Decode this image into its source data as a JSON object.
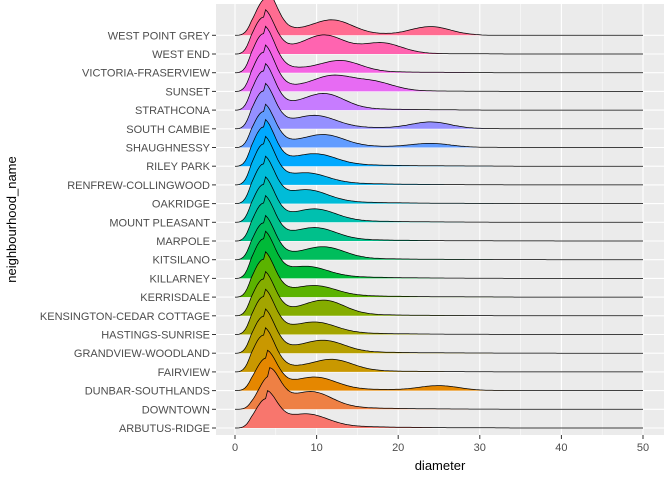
{
  "chart_data": {
    "type": "area",
    "subtype": "ridgeline",
    "title": "",
    "xlabel": "diameter",
    "ylabel": "neighbourhood_name",
    "xlim": [
      0,
      50
    ],
    "x_ticks": [
      0,
      10,
      20,
      30,
      40,
      50
    ],
    "grid": true,
    "legend": "none",
    "panel_background": "#ebebeb",
    "series": [
      {
        "name": "ARBUTUS-RIDGE",
        "color": "#F8766D",
        "peaks": [
          [
            3.8,
            0.62
          ],
          [
            9.0,
            0.22
          ]
        ],
        "long_tail_to": 32
      },
      {
        "name": "DOWNTOWN",
        "color": "#EE8044",
        "peaks": [
          [
            4.2,
            0.7
          ],
          [
            9.5,
            0.3
          ]
        ],
        "long_tail_to": 40
      },
      {
        "name": "DUNBAR-SOUTHLANDS",
        "color": "#E58700",
        "peaks": [
          [
            3.8,
            0.7
          ],
          [
            10.0,
            0.22
          ],
          [
            25.0,
            0.1
          ]
        ],
        "long_tail_to": 34
      },
      {
        "name": "FAIRVIEW",
        "color": "#C99800",
        "peaks": [
          [
            3.5,
            0.8
          ],
          [
            12.0,
            0.22
          ]
        ],
        "long_tail_to": 29
      },
      {
        "name": "GRANDVIEW-WOODLAND",
        "color": "#B69F00",
        "peaks": [
          [
            3.5,
            0.8
          ],
          [
            11.0,
            0.22
          ]
        ],
        "long_tail_to": 49
      },
      {
        "name": "HASTINGS-SUNRISE",
        "color": "#A3A500",
        "peaks": [
          [
            3.5,
            0.82
          ],
          [
            10.0,
            0.2
          ]
        ],
        "long_tail_to": 31
      },
      {
        "name": "KENSINGTON-CEDAR COTTAGE",
        "color": "#85AD00",
        "peaks": [
          [
            3.5,
            0.8
          ],
          [
            11.0,
            0.28
          ]
        ],
        "long_tail_to": 33
      },
      {
        "name": "KERRISDALE",
        "color": "#5BB300",
        "peaks": [
          [
            3.5,
            0.82
          ],
          [
            10.0,
            0.18
          ]
        ],
        "long_tail_to": 33
      },
      {
        "name": "KILLARNEY",
        "color": "#00BA38",
        "peaks": [
          [
            3.5,
            0.85
          ],
          [
            9.0,
            0.18
          ]
        ],
        "long_tail_to": 31
      },
      {
        "name": "KITSILANO",
        "color": "#00BD5C",
        "peaks": [
          [
            3.5,
            0.8
          ],
          [
            11.0,
            0.22
          ]
        ],
        "long_tail_to": 38
      },
      {
        "name": "MARPOLE",
        "color": "#00C08B",
        "peaks": [
          [
            3.5,
            0.82
          ],
          [
            10.0,
            0.22
          ]
        ],
        "long_tail_to": 39
      },
      {
        "name": "MOUNT PLEASANT",
        "color": "#00C0AF",
        "peaks": [
          [
            3.5,
            0.82
          ],
          [
            10.0,
            0.22
          ]
        ],
        "long_tail_to": 31
      },
      {
        "name": "OAKRIDGE",
        "color": "#00BCD8",
        "peaks": [
          [
            3.5,
            0.85
          ],
          [
            9.0,
            0.22
          ]
        ],
        "long_tail_to": 33
      },
      {
        "name": "RENFREW-COLLINGWOOD",
        "color": "#00B4F0",
        "peaks": [
          [
            3.5,
            0.88
          ],
          [
            9.0,
            0.18
          ]
        ],
        "long_tail_to": 31
      },
      {
        "name": "RILEY PARK",
        "color": "#00A9FF",
        "peaks": [
          [
            3.5,
            0.85
          ],
          [
            10.0,
            0.2
          ]
        ],
        "long_tail_to": 33
      },
      {
        "name": "SHAUGHNESSY",
        "color": "#619CFF",
        "peaks": [
          [
            3.5,
            0.78
          ],
          [
            11.0,
            0.22
          ],
          [
            24.0,
            0.08
          ]
        ],
        "long_tail_to": 39
      },
      {
        "name": "SOUTH CAMBIE",
        "color": "#9590FF",
        "peaks": [
          [
            3.5,
            0.82
          ],
          [
            10.0,
            0.22
          ],
          [
            24.0,
            0.14
          ]
        ],
        "long_tail_to": 36
      },
      {
        "name": "STRATHCONA",
        "color": "#C77CFF",
        "peaks": [
          [
            3.5,
            0.85
          ],
          [
            11.0,
            0.3
          ]
        ],
        "long_tail_to": 27
      },
      {
        "name": "SUNSET",
        "color": "#E76BF3",
        "peaks": [
          [
            3.5,
            0.85
          ],
          [
            12.0,
            0.28
          ],
          [
            17.0,
            0.18
          ]
        ],
        "long_tail_to": 30
      },
      {
        "name": "VICTORIA-FRASERVIEW",
        "color": "#F564E3",
        "peaks": [
          [
            3.5,
            0.85
          ],
          [
            13.0,
            0.22
          ]
        ],
        "long_tail_to": 29
      },
      {
        "name": "WEST END",
        "color": "#FF64B0",
        "peaks": [
          [
            3.5,
            0.8
          ],
          [
            11.0,
            0.35
          ],
          [
            18.0,
            0.22
          ]
        ],
        "long_tail_to": 31
      },
      {
        "name": "WEST POINT GREY",
        "color": "#FF6C91",
        "peaks": [
          [
            3.8,
            0.8
          ],
          [
            12.0,
            0.28
          ],
          [
            24.0,
            0.18
          ]
        ],
        "long_tail_to": 30
      }
    ]
  }
}
